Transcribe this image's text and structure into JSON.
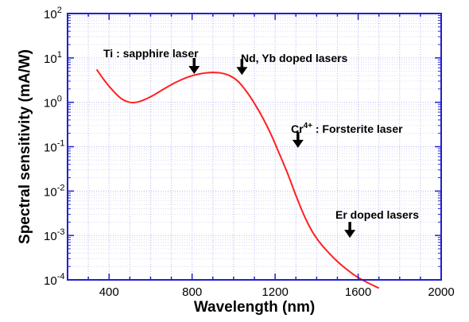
{
  "chart_data": {
    "type": "line",
    "xlabel": "Wavelength (nm)",
    "ylabel": "Spectral sensitivity (mA/W)",
    "xlim": [
      200,
      2000
    ],
    "ylim_log10": [
      -4,
      2
    ],
    "y_scale": "log",
    "grid": true,
    "x_ticks": [
      400,
      800,
      1200,
      1600,
      2000
    ],
    "x_tick_labels": [
      "400",
      "800",
      "1200",
      "1600",
      "2000"
    ],
    "y_ticks_exponents": [
      2,
      1,
      0,
      -1,
      -2,
      -3,
      -4
    ],
    "y_tick_base": "10",
    "y_tick_exp_labels": [
      "2",
      "1",
      "0",
      "-1",
      "-2",
      "-3",
      "-4"
    ],
    "series": [
      {
        "color": "#ff2020",
        "x": [
          340,
          380,
          420,
          460,
          500,
          540,
          580,
          620,
          660,
          700,
          740,
          780,
          820,
          860,
          900,
          940,
          980,
          1020,
          1060,
          1100,
          1140,
          1180,
          1220,
          1260,
          1300,
          1340,
          1380,
          1420,
          1460,
          1500,
          1540,
          1580,
          1620,
          1660,
          1700
        ],
        "y": [
          5.5,
          3.0,
          1.8,
          1.2,
          1.0,
          1.02,
          1.2,
          1.5,
          1.95,
          2.5,
          3.1,
          3.7,
          4.2,
          4.55,
          4.7,
          4.55,
          4.0,
          3.0,
          1.8,
          0.95,
          0.45,
          0.19,
          0.07,
          0.025,
          0.008,
          0.0028,
          0.0012,
          0.00065,
          0.0004,
          0.00026,
          0.00018,
          0.00013,
          0.0001,
          8e-05,
          6.5e-05
        ]
      }
    ],
    "annotations": [
      {
        "text": "Ti : sapphire laser",
        "arrow_x": 810,
        "arrow_y": 3.7
      },
      {
        "text": "Nd, Yb doped lasers",
        "arrow_x": 1040,
        "arrow_y": 3.5
      },
      {
        "text": "Cr",
        "superscript": "4+",
        "suffix": " : Forsterite laser",
        "arrow_x": 1310,
        "arrow_y": 0.08
      },
      {
        "text": "Er doped lasers",
        "arrow_x": 1560,
        "arrow_y": 0.00075
      }
    ]
  }
}
